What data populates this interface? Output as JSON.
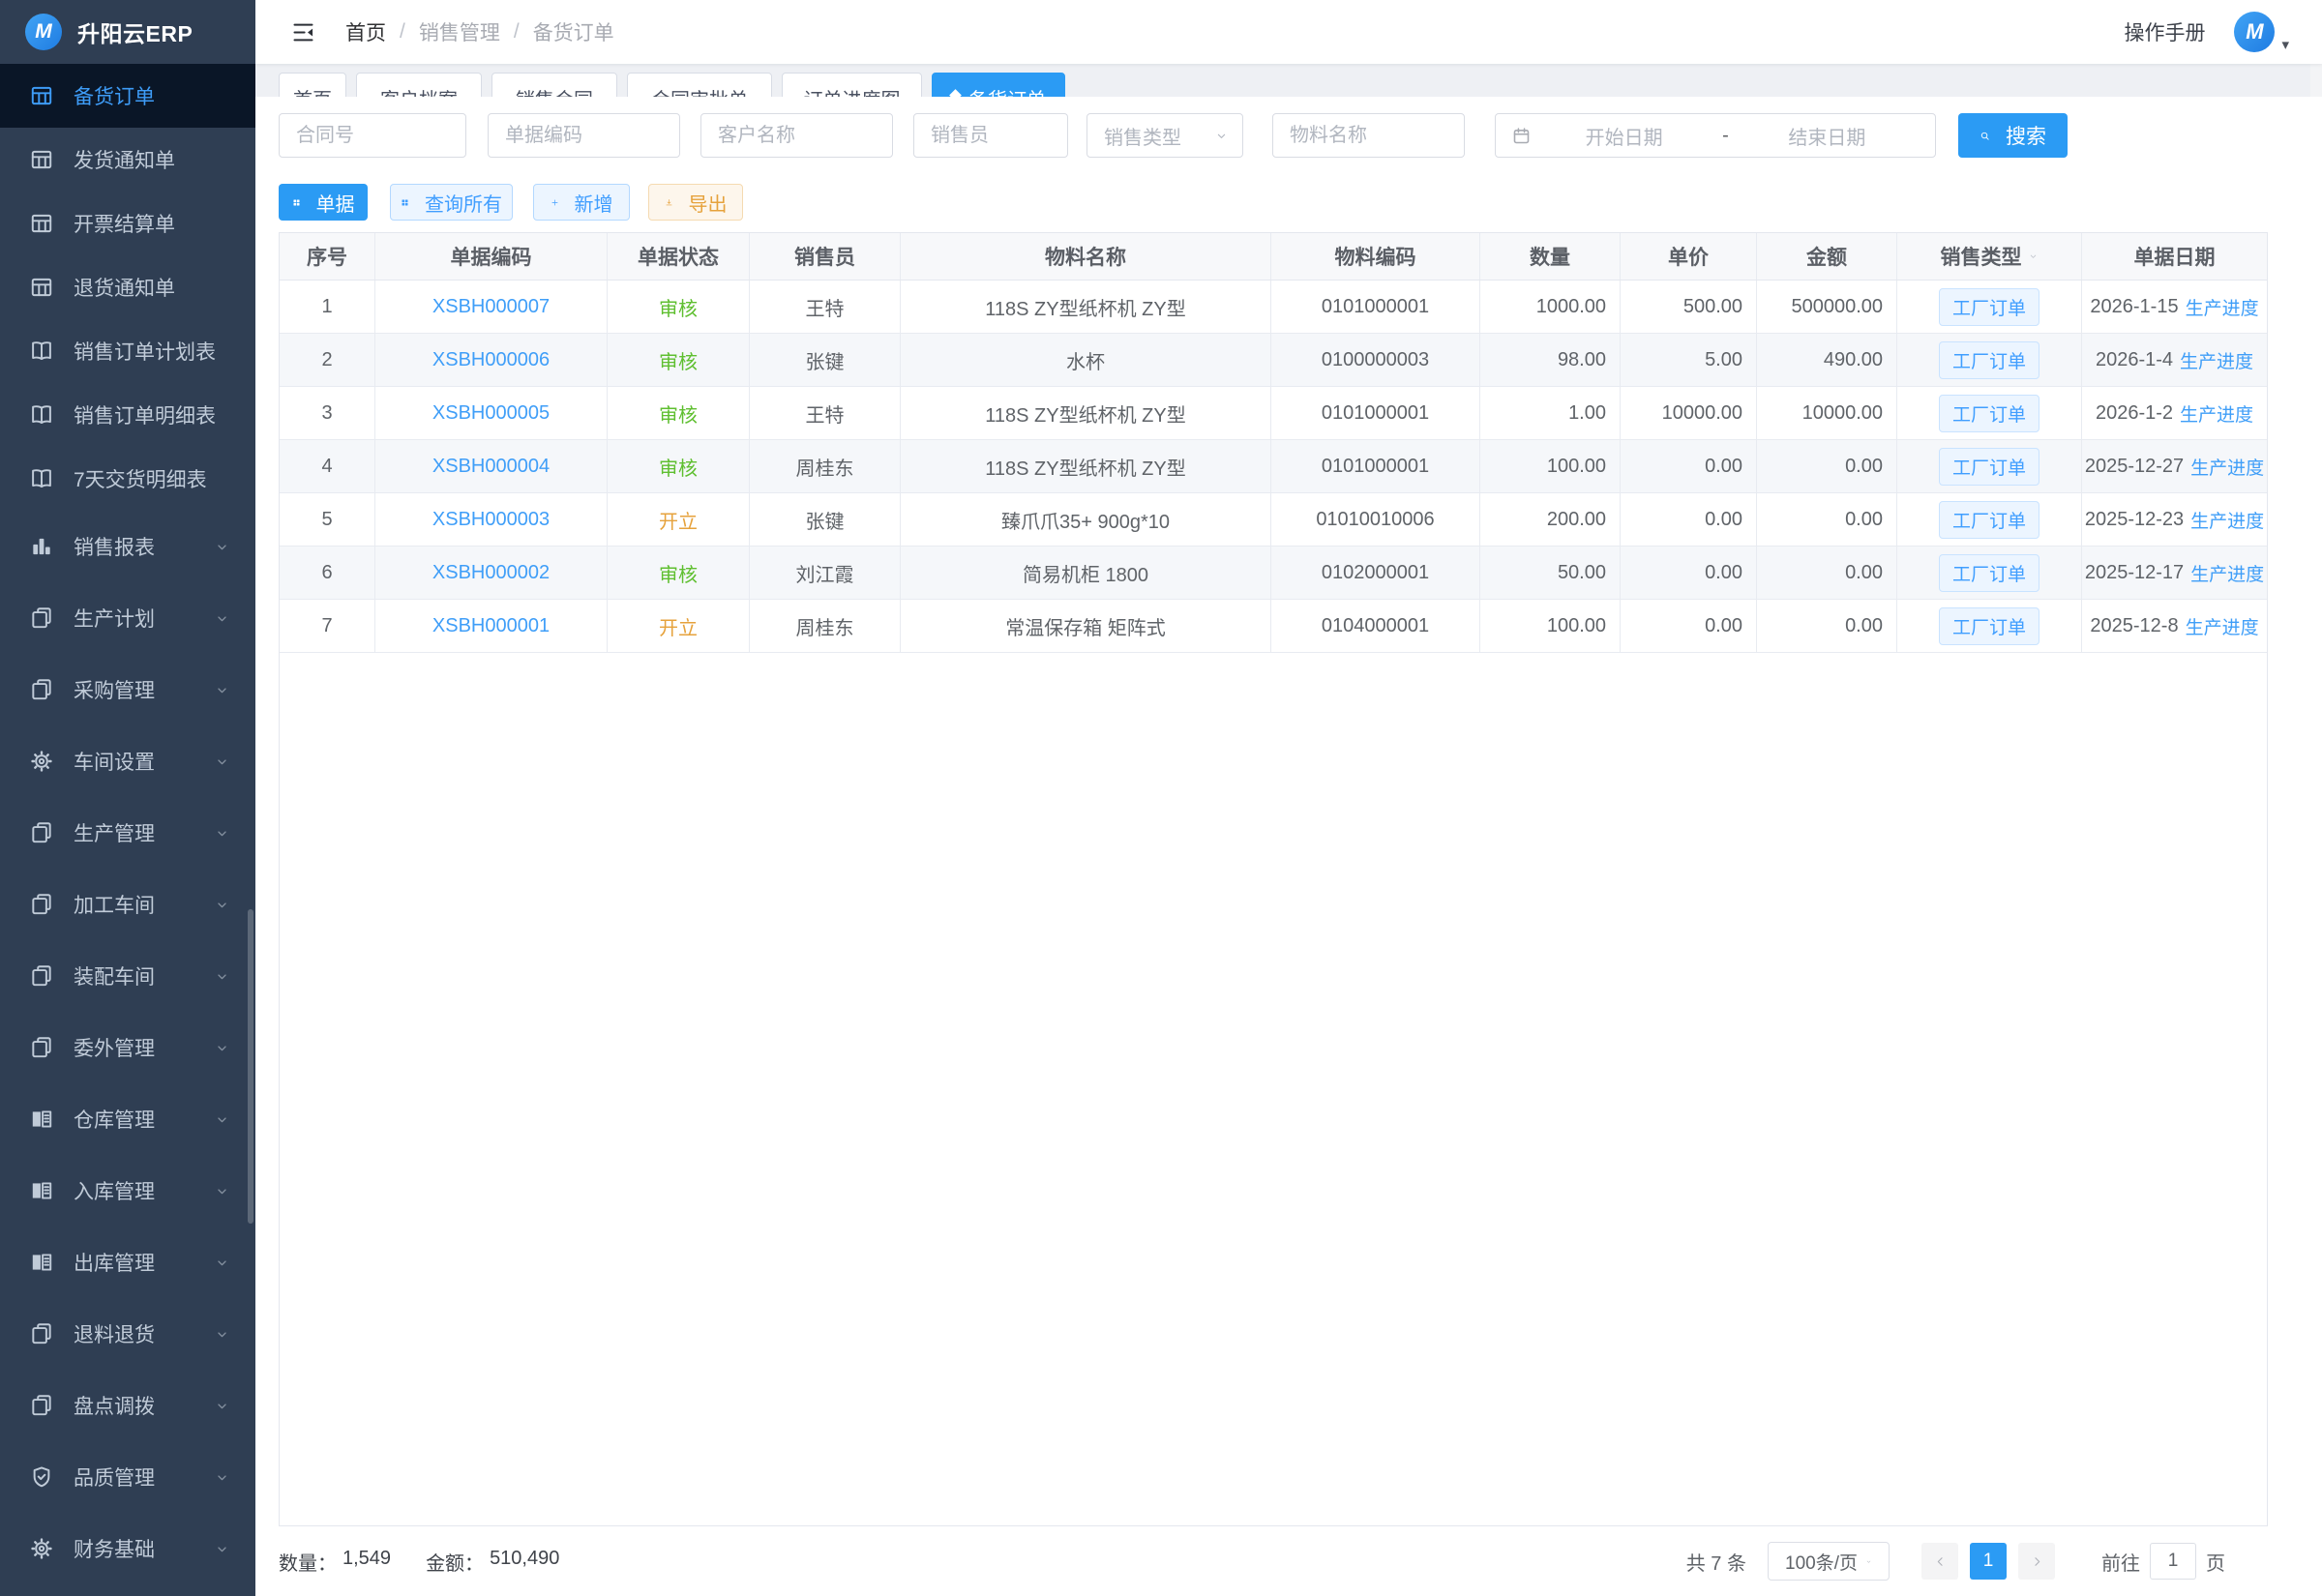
{
  "app": {
    "name": "升阳云ERP",
    "logo_letter": "M"
  },
  "header": {
    "breadcrumb": [
      "首页",
      "销售管理",
      "备货订单"
    ],
    "manual_label": "操作手册",
    "avatar_letter": "M"
  },
  "tabs": [
    {
      "label": "首页",
      "active": false
    },
    {
      "label": "客户档案",
      "active": false
    },
    {
      "label": "销售合同",
      "active": false
    },
    {
      "label": "合同审批单",
      "active": false
    },
    {
      "label": "订单进度图",
      "active": false
    },
    {
      "label": "备货订单",
      "active": true
    }
  ],
  "sidebar": {
    "items": [
      {
        "label": "备货订单",
        "icon": "table-icon",
        "active": true,
        "expandable": false
      },
      {
        "label": "发货通知单",
        "icon": "table-icon",
        "active": false,
        "expandable": false
      },
      {
        "label": "开票结算单",
        "icon": "table-icon",
        "active": false,
        "expandable": false
      },
      {
        "label": "退货通知单",
        "icon": "table-icon",
        "active": false,
        "expandable": false
      },
      {
        "label": "销售订单计划表",
        "icon": "report-icon",
        "active": false,
        "expandable": false
      },
      {
        "label": "销售订单明细表",
        "icon": "report-icon",
        "active": false,
        "expandable": false
      },
      {
        "label": "7天交货明细表",
        "icon": "report-icon",
        "active": false,
        "expandable": false
      },
      {
        "label": "销售报表",
        "icon": "chart-icon",
        "active": false,
        "expandable": true
      },
      {
        "label": "生产计划",
        "icon": "pages-icon",
        "active": false,
        "expandable": true
      },
      {
        "label": "采购管理",
        "icon": "pages-icon",
        "active": false,
        "expandable": true
      },
      {
        "label": "车间设置",
        "icon": "gear-icon",
        "active": false,
        "expandable": true
      },
      {
        "label": "生产管理",
        "icon": "pages-icon",
        "active": false,
        "expandable": true
      },
      {
        "label": "加工车间",
        "icon": "pages-icon",
        "active": false,
        "expandable": true
      },
      {
        "label": "装配车间",
        "icon": "pages-icon",
        "active": false,
        "expandable": true
      },
      {
        "label": "委外管理",
        "icon": "pages-icon",
        "active": false,
        "expandable": true
      },
      {
        "label": "仓库管理",
        "icon": "warehouse-icon",
        "active": false,
        "expandable": true
      },
      {
        "label": "入库管理",
        "icon": "warehouse-icon",
        "active": false,
        "expandable": true
      },
      {
        "label": "出库管理",
        "icon": "warehouse-icon",
        "active": false,
        "expandable": true
      },
      {
        "label": "退料退货",
        "icon": "pages-icon",
        "active": false,
        "expandable": true
      },
      {
        "label": "盘点调拨",
        "icon": "pages-icon",
        "active": false,
        "expandable": true
      },
      {
        "label": "品质管理",
        "icon": "shield-icon",
        "active": false,
        "expandable": true
      },
      {
        "label": "财务基础",
        "icon": "gear-icon",
        "active": false,
        "expandable": true
      }
    ]
  },
  "filters": {
    "contract": "合同号",
    "doc_code": "单据编码",
    "customer": "客户名称",
    "salesperson": "销售员",
    "sale_type": "销售类型",
    "material": "物料名称",
    "start_date": "开始日期",
    "range_separator": "-",
    "end_date": "结束日期",
    "search_label": "搜索"
  },
  "toolbar": {
    "document_label": "单据",
    "query_all_label": "查询所有",
    "add_label": "新增",
    "export_label": "导出"
  },
  "table": {
    "columns": [
      "序号",
      "单据编码",
      "单据状态",
      "销售员",
      "物料名称",
      "物料编码",
      "数量",
      "单价",
      "金额",
      "销售类型",
      "单据日期"
    ],
    "rows": [
      {
        "seq": "1",
        "code": "XSBH000007",
        "status": "审核",
        "status_key": "approved",
        "salesperson": "王特",
        "material": "118S ZY型纸杯机 ZY型",
        "material_code": "0101000001",
        "qty": "1000.00",
        "price": "500.00",
        "amount": "500000.00",
        "sale_type": "工厂订单",
        "date": "2026-1-15",
        "progress": "生产进度"
      },
      {
        "seq": "2",
        "code": "XSBH000006",
        "status": "审核",
        "status_key": "approved",
        "salesperson": "张键",
        "material": "水杯",
        "material_code": "0100000003",
        "qty": "98.00",
        "price": "5.00",
        "amount": "490.00",
        "sale_type": "工厂订单",
        "date": "2026-1-4",
        "progress": "生产进度"
      },
      {
        "seq": "3",
        "code": "XSBH000005",
        "status": "审核",
        "status_key": "approved",
        "salesperson": "王特",
        "material": "118S ZY型纸杯机 ZY型",
        "material_code": "0101000001",
        "qty": "1.00",
        "price": "10000.00",
        "amount": "10000.00",
        "sale_type": "工厂订单",
        "date": "2026-1-2",
        "progress": "生产进度"
      },
      {
        "seq": "4",
        "code": "XSBH000004",
        "status": "审核",
        "status_key": "approved",
        "salesperson": "周桂东",
        "material": "118S ZY型纸杯机 ZY型",
        "material_code": "0101000001",
        "qty": "100.00",
        "price": "0.00",
        "amount": "0.00",
        "sale_type": "工厂订单",
        "date": "2025-12-27",
        "progress": "生产进度"
      },
      {
        "seq": "5",
        "code": "XSBH000003",
        "status": "开立",
        "status_key": "open",
        "salesperson": "张键",
        "material": "臻爪爪35+ 900g*10",
        "material_code": "01010010006",
        "qty": "200.00",
        "price": "0.00",
        "amount": "0.00",
        "sale_type": "工厂订单",
        "date": "2025-12-23",
        "progress": "生产进度"
      },
      {
        "seq": "6",
        "code": "XSBH000002",
        "status": "审核",
        "status_key": "approved",
        "salesperson": "刘江霞",
        "material": "简易机柜 1800",
        "material_code": "0102000001",
        "qty": "50.00",
        "price": "0.00",
        "amount": "0.00",
        "sale_type": "工厂订单",
        "date": "2025-12-17",
        "progress": "生产进度"
      },
      {
        "seq": "7",
        "code": "XSBH000001",
        "status": "开立",
        "status_key": "open",
        "salesperson": "周桂东",
        "material": "常温保存箱 矩阵式",
        "material_code": "0104000001",
        "qty": "100.00",
        "price": "0.00",
        "amount": "0.00",
        "sale_type": "工厂订单",
        "date": "2025-12-8",
        "progress": "生产进度"
      }
    ]
  },
  "footer": {
    "qty_label": "数量：",
    "qty_value": "1,549",
    "amount_label": "金额：",
    "amount_value": "510,490",
    "total_text": "共 7 条",
    "page_size": "100条/页",
    "current_page": "1",
    "goto_label": "前往",
    "goto_value": "1",
    "page_unit": "页"
  },
  "colors": {
    "primary_blue": "#2b9bf4",
    "link_blue": "#3f9ef8",
    "status_approved_green": "#5fbf30",
    "status_open_orange": "#e6a23c",
    "sidebar_bg": "#2f3e53",
    "sidebar_active_bg": "#0a1627",
    "tag_bg": "#ecf5ff"
  }
}
